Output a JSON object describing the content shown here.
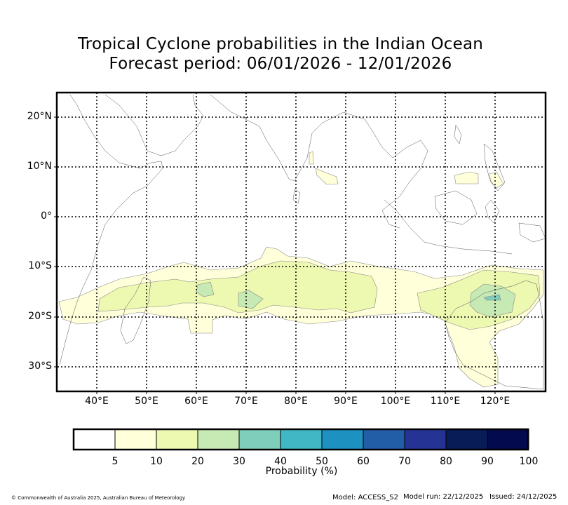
{
  "title": {
    "line1": "Tropical Cyclone probabilities in the Indian Ocean",
    "line2": "Forecast period: 06/01/2026 - 12/01/2026"
  },
  "map": {
    "lat_labels": [
      "20°N",
      "10°N",
      "0°",
      "10°S",
      "20°S",
      "30°S"
    ],
    "lon_labels": [
      "40°E",
      "50°E",
      "60°E",
      "70°E",
      "80°E",
      "90°E",
      "100°E",
      "110°E",
      "120°E"
    ],
    "lat_range": [
      -35,
      25
    ],
    "lon_range": [
      32,
      130
    ]
  },
  "colorbar": {
    "title": "Probability (%)",
    "tick_labels": [
      "5",
      "10",
      "20",
      "30",
      "40",
      "50",
      "60",
      "70",
      "80",
      "90",
      "100"
    ],
    "colors": [
      "#ffffff",
      "#ffffd9",
      "#edf8b1",
      "#c7e9b4",
      "#7fcdbb",
      "#41b6c4",
      "#1d91c0",
      "#225ea8",
      "#253494",
      "#081d58",
      "#030a4e"
    ]
  },
  "footer": {
    "copyright": "© Commonwealth of Australia 2025, Australian Bureau of Meteorology",
    "model": "Model: ACCESS_S2",
    "model_run": "Model run: 22/12/2025",
    "issued": "Issued: 24/12/2025"
  }
}
